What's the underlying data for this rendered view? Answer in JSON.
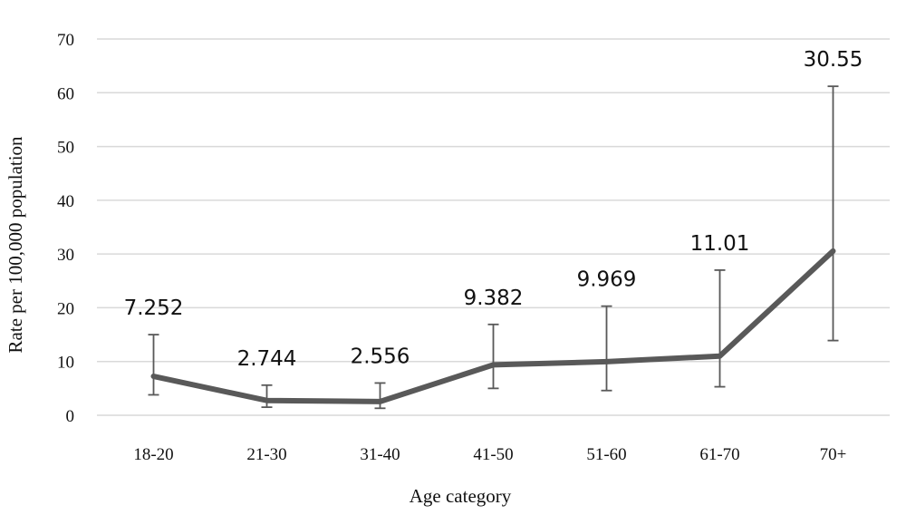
{
  "chart_data": {
    "type": "line",
    "categories": [
      "18-20",
      "21-30",
      "31-40",
      "41-50",
      "51-60",
      "61-70",
      "70+"
    ],
    "series": [
      {
        "values": [
          7.252,
          2.744,
          2.556,
          9.382,
          9.969,
          11.01,
          30.55
        ],
        "error_low": [
          3.8,
          1.5,
          1.3,
          5.0,
          4.6,
          5.3,
          13.9
        ],
        "error_high": [
          15.0,
          5.6,
          6.0,
          16.9,
          20.3,
          27.0,
          61.2
        ],
        "color": "#595959"
      }
    ],
    "data_labels": [
      "7.252",
      "2.744",
      "2.556",
      "9.382",
      "9.969",
      "11.01",
      "30.55"
    ],
    "xlabel": "Age category",
    "ylabel": "Rate per 100,000 population",
    "ylim": [
      0,
      70
    ],
    "yticks": [
      "0",
      "10",
      "20",
      "30",
      "40",
      "50",
      "60",
      "70"
    ],
    "grid": true,
    "legend": "none",
    "colors": {
      "line": "#595959",
      "error_bar": "#595959",
      "grid": "#d9d9d9"
    }
  }
}
